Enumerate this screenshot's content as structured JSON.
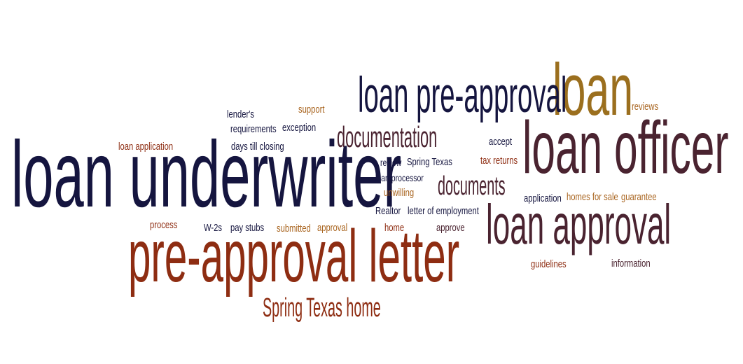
{
  "colors": {
    "navy": "#15153f",
    "brown": "#4a2330",
    "rust": "#8e2d12",
    "orange": "#a96520",
    "gold": "#9b6f1e"
  },
  "words": [
    {
      "text": "loan underwriter",
      "color": "#15153f"
    },
    {
      "text": "pre-approval letter",
      "color": "#8e2d12"
    },
    {
      "text": "loan officer",
      "color": "#4a2330"
    },
    {
      "text": "loan",
      "color": "#9b6f1e"
    },
    {
      "text": "loan pre-approval",
      "color": "#15153f"
    },
    {
      "text": "loan approval",
      "color": "#4a2330"
    },
    {
      "text": "documentation",
      "color": "#4a2330"
    },
    {
      "text": "documents",
      "color": "#4a2330"
    },
    {
      "text": "Spring Texas home",
      "color": "#8e2d12"
    },
    {
      "text": "lender's",
      "color": "#15153f"
    },
    {
      "text": "requirements",
      "color": "#15153f"
    },
    {
      "text": "exception",
      "color": "#15153f"
    },
    {
      "text": "support",
      "color": "#a96520"
    },
    {
      "text": "days till closing",
      "color": "#15153f"
    },
    {
      "text": "loan application",
      "color": "#8e2d12"
    },
    {
      "text": "review",
      "color": "#15153f"
    },
    {
      "text": "Spring Texas",
      "color": "#15153f"
    },
    {
      "text": "loan processor",
      "color": "#15153f"
    },
    {
      "text": "unwilling",
      "color": "#a96520"
    },
    {
      "text": "Realtor",
      "color": "#15153f"
    },
    {
      "text": "letter of employment",
      "color": "#15153f"
    },
    {
      "text": "process",
      "color": "#8e2d12"
    },
    {
      "text": "W-2s",
      "color": "#15153f"
    },
    {
      "text": "pay stubs",
      "color": "#15153f"
    },
    {
      "text": "submitted",
      "color": "#a96520"
    },
    {
      "text": "approval",
      "color": "#a96520"
    },
    {
      "text": "home",
      "color": "#8e2d12"
    },
    {
      "text": "approve",
      "color": "#4a2330"
    },
    {
      "text": "reviews",
      "color": "#a96520"
    },
    {
      "text": "accept",
      "color": "#15153f"
    },
    {
      "text": "tax returns",
      "color": "#8e2d12"
    },
    {
      "text": "application",
      "color": "#15153f"
    },
    {
      "text": "homes for sale",
      "color": "#a96520"
    },
    {
      "text": "guarantee",
      "color": "#a96520"
    },
    {
      "text": "guidelines",
      "color": "#8e2d12"
    },
    {
      "text": "information",
      "color": "#4a2330"
    }
  ]
}
